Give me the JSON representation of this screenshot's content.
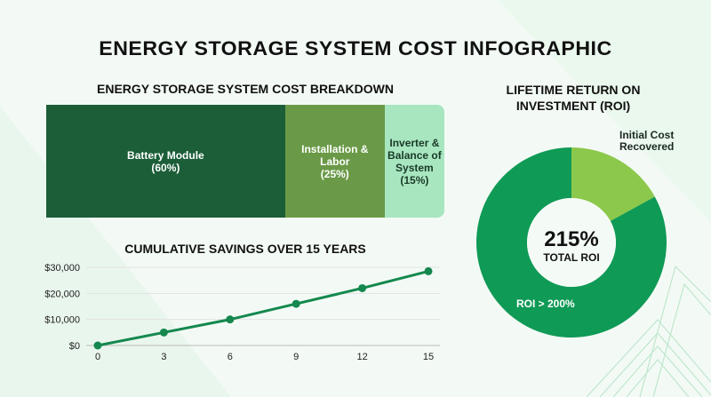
{
  "title": "ENERGY STORAGE SYSTEM COST INFOGRAPHIC",
  "colors": {
    "dark_green": "#1b5e38",
    "olive": "#6a9a47",
    "mint": "#a8e6c0",
    "donut_main": "#0f9a56",
    "donut_light": "#8cc84b",
    "line": "#14884e"
  },
  "chart_data": [
    {
      "type": "bar",
      "title": "ENERGY STORAGE SYSTEM COST BREAKDOWN",
      "stacked": true,
      "orientation": "horizontal",
      "categories": [
        "Battery Module",
        "Installation & Labor",
        "Inverter & Balance of System"
      ],
      "values": [
        60,
        25,
        15
      ],
      "labels": [
        "Battery Module\n(60%)",
        "Installation &\nLabor\n(25%)",
        "Inverter &\nBalance of\nSystem\n(15%)"
      ]
    },
    {
      "type": "line",
      "title": "CUMULATIVE SAVINGS OVER 15 YEARS",
      "xlabel": "",
      "ylabel": "",
      "x": [
        0,
        3,
        6,
        9,
        12,
        15
      ],
      "y": [
        0,
        5000,
        10000,
        16000,
        22000,
        28500
      ],
      "xticks": [
        "0",
        "3",
        "6",
        "9",
        "12",
        "15"
      ],
      "yticks": [
        "$0",
        "$10,000",
        "$20,000",
        "$30,000"
      ],
      "ylim": [
        0,
        30000
      ],
      "xlim": [
        0,
        15
      ],
      "grid": "horizontal"
    },
    {
      "type": "pie",
      "donut": true,
      "title": "LIFETIME RETURN ON INVESTMENT (ROI)",
      "categories": [
        "Initial Cost Recovered",
        "ROI > 200%"
      ],
      "values": [
        17,
        83
      ],
      "center_value": "215%",
      "center_label": "TOTAL ROI"
    }
  ]
}
